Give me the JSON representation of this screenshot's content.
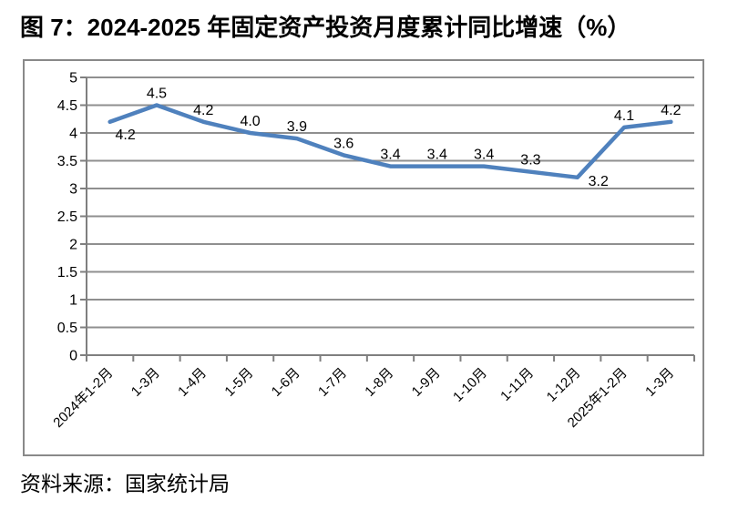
{
  "page": {
    "title": "图 7：2024-2025 年固定资产投资月度累计同比增速（%）",
    "source": "资料来源：国家统计局"
  },
  "chart_data": {
    "type": "line",
    "title": "图 7：2024-2025 年固定资产投资月度累计同比增速（%）",
    "xlabel": "",
    "ylabel": "",
    "categories": [
      "2024年1-2月",
      "1-3月",
      "1-4月",
      "1-5月",
      "1-6月",
      "1-7月",
      "1-8月",
      "1-9月",
      "1-10月",
      "1-11月",
      "1-12月",
      "2025年1-2月",
      "1-3月"
    ],
    "values": [
      4.2,
      4.5,
      4.2,
      4.0,
      3.9,
      3.6,
      3.4,
      3.4,
      3.4,
      3.3,
      3.2,
      4.1,
      4.2
    ],
    "ylim": [
      0,
      5
    ],
    "ytick_labels": [
      "5",
      "4.5",
      "4",
      "3.5",
      "3",
      "2.5",
      "2",
      "1.5",
      "1",
      "0.5",
      "0"
    ],
    "grid": true,
    "legend": "none",
    "data_labels_shown": true,
    "x_label_rotation_deg": -45,
    "line_color": "#4F81BD",
    "grid_color": "#8F8F8F",
    "axis_color": "#7F7F7F",
    "text_color": "#000000",
    "label_default_offset": [
      0,
      -8
    ],
    "label_offsets": {
      "0": [
        17,
        19
      ],
      "10": [
        23,
        9
      ]
    }
  }
}
